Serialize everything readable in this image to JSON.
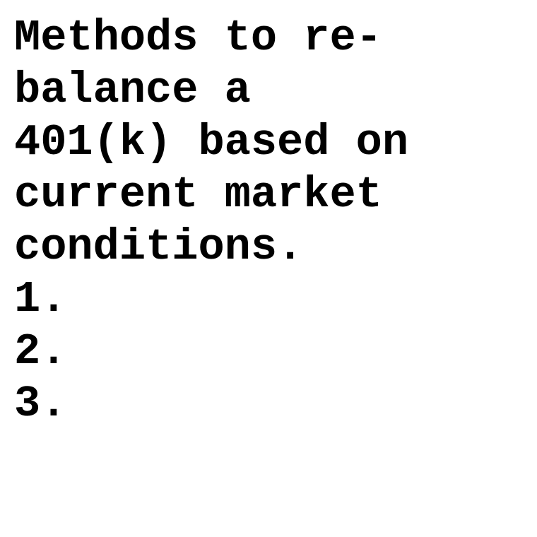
{
  "document": {
    "heading_lines": [
      "Methods to re-",
      "balance a",
      "401(k) based on",
      "current market",
      "conditions."
    ],
    "list_items": [
      "1.",
      "2.",
      "3."
    ]
  }
}
